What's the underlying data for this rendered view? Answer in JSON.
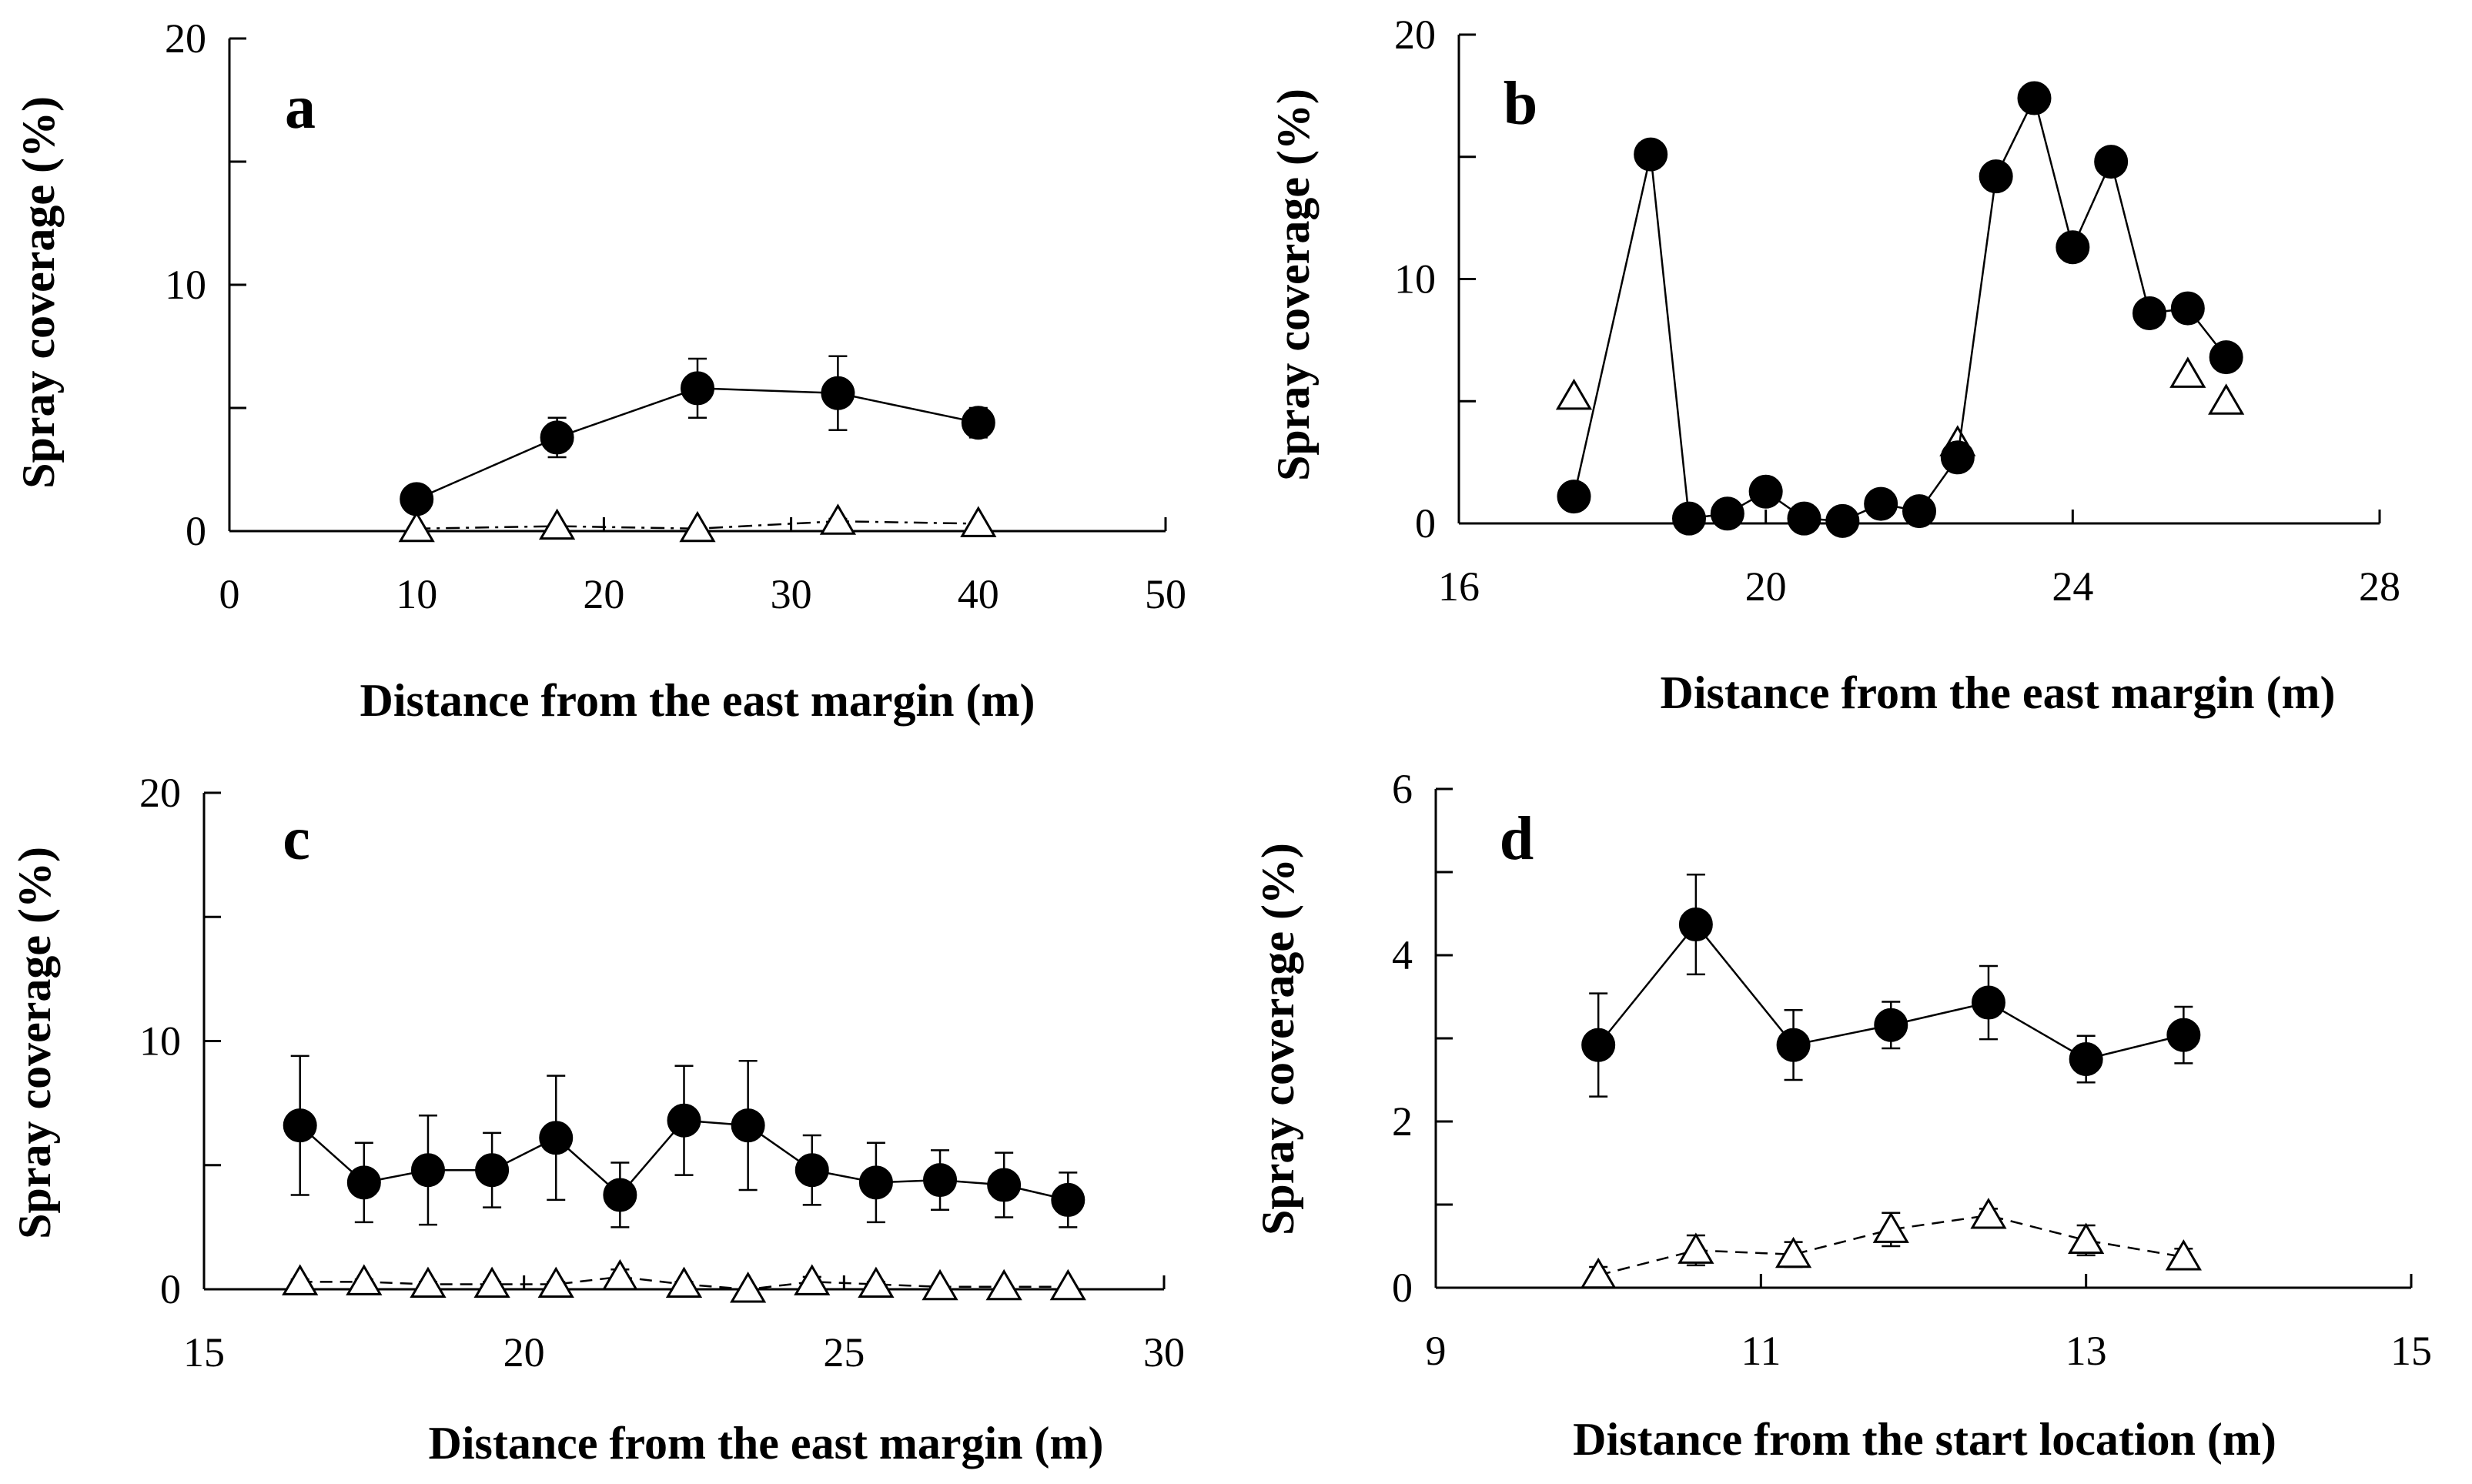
{
  "chart_data": [
    {
      "type": "line",
      "panel_label": "a",
      "xlabel": "Distance from the east margin (m)",
      "ylabel": "Spray coverage (%)",
      "xlim": [
        0,
        50
      ],
      "ylim": [
        0,
        20
      ],
      "xticks": [
        "0",
        "10",
        "20",
        "30",
        "40",
        "50"
      ],
      "yticks": [
        "0",
        "10",
        "20"
      ],
      "series": [
        {
          "name": "filled-circles",
          "marker": "circle",
          "style": "solid",
          "x": [
            10,
            17.5,
            25,
            32.5,
            40
          ],
          "y": [
            1.3,
            3.8,
            5.8,
            5.6,
            4.4
          ],
          "err": [
            0.3,
            0.8,
            1.2,
            1.5,
            0.6
          ]
        },
        {
          "name": "open-triangles",
          "marker": "triangle",
          "style": "dashdot",
          "x": [
            10,
            17.5,
            25,
            32.5,
            40
          ],
          "y": [
            0.1,
            0.2,
            0.1,
            0.4,
            0.3
          ],
          "err": [
            0,
            0,
            0,
            0.1,
            0
          ]
        }
      ]
    },
    {
      "type": "line",
      "panel_label": "b",
      "xlabel": "Distance from the east margin (m)",
      "ylabel": "Spray coverage (%)",
      "xlim": [
        16,
        28
      ],
      "ylim": [
        0,
        20
      ],
      "xticks": [
        "16",
        "20",
        "24",
        "28"
      ],
      "yticks": [
        "0",
        "10",
        "20"
      ],
      "series": [
        {
          "name": "filled-circles",
          "marker": "circle",
          "style": "solid",
          "x": [
            17.5,
            18.5,
            19,
            19.5,
            20,
            20.5,
            21,
            21.5,
            22,
            22.5,
            23,
            23.5,
            24,
            24.5,
            25,
            25.5,
            26
          ],
          "y": [
            1.1,
            15.1,
            0.2,
            0.4,
            1.3,
            0.2,
            0.1,
            0.8,
            0.5,
            2.7,
            14.2,
            17.4,
            11.3,
            14.8,
            8.6,
            8.8,
            6.8
          ],
          "err": []
        },
        {
          "name": "open-triangles",
          "marker": "triangle",
          "style": "none",
          "x": [
            17.5,
            22.5,
            25.5,
            26
          ],
          "y": [
            5.2,
            3.3,
            6.1,
            5.0
          ],
          "err": []
        }
      ]
    },
    {
      "type": "line",
      "panel_label": "c",
      "xlabel": "Distance from the east margin (m)",
      "ylabel": "Spray coverage (%)",
      "xlim": [
        15,
        30
      ],
      "ylim": [
        0,
        20
      ],
      "xticks": [
        "15",
        "20",
        "25",
        "30"
      ],
      "yticks": [
        "0",
        "10",
        "20"
      ],
      "series": [
        {
          "name": "filled-circles",
          "marker": "circle",
          "style": "solid",
          "x": [
            16.5,
            17.5,
            18.5,
            19.5,
            20.5,
            21.5,
            22.5,
            23.5,
            24.5,
            25.5,
            26.5,
            27.5,
            28.5
          ],
          "y": [
            6.6,
            4.3,
            4.8,
            4.8,
            6.1,
            3.8,
            6.8,
            6.6,
            4.8,
            4.3,
            4.4,
            4.2,
            3.6
          ],
          "err": [
            2.8,
            1.6,
            2.2,
            1.5,
            2.5,
            1.3,
            2.2,
            2.6,
            1.4,
            1.6,
            1.2,
            1.3,
            1.1
          ]
        },
        {
          "name": "open-triangles",
          "marker": "triangle",
          "style": "dash",
          "x": [
            16.5,
            17.5,
            18.5,
            19.5,
            20.5,
            21.5,
            22.5,
            23.5,
            24.5,
            25.5,
            26.5,
            27.5,
            28.5
          ],
          "y": [
            0.3,
            0.3,
            0.2,
            0.2,
            0.2,
            0.5,
            0.2,
            0.0,
            0.3,
            0.2,
            0.1,
            0.1,
            0.1
          ],
          "err": [
            0.1,
            0.1,
            0.1,
            0.1,
            0.1,
            0.3,
            0.1,
            0,
            0.2,
            0.1,
            0,
            0,
            0
          ]
        }
      ]
    },
    {
      "type": "line",
      "panel_label": "d",
      "xlabel": "Distance from the start location (m)",
      "ylabel": "Spray coverage (%)",
      "xlim": [
        9,
        15
      ],
      "ylim": [
        0,
        6
      ],
      "xticks": [
        "9",
        "11",
        "13",
        "15"
      ],
      "yticks": [
        "0",
        "2",
        "4",
        "6"
      ],
      "series": [
        {
          "name": "filled-circles",
          "marker": "circle",
          "style": "solid",
          "x": [
            10,
            10.6,
            11.2,
            11.8,
            12.4,
            13,
            13.6
          ],
          "y": [
            2.92,
            4.37,
            2.92,
            3.16,
            3.43,
            2.75,
            3.04
          ],
          "err": [
            0.62,
            0.6,
            0.42,
            0.28,
            0.44,
            0.28,
            0.34
          ]
        },
        {
          "name": "open-triangles",
          "marker": "triangle",
          "style": "dash",
          "x": [
            10,
            10.6,
            11.2,
            11.8,
            12.4,
            13,
            13.6
          ],
          "y": [
            0.15,
            0.45,
            0.4,
            0.7,
            0.87,
            0.57,
            0.37
          ],
          "err": [
            0.1,
            0.18,
            0.15,
            0.2,
            0.08,
            0.18,
            0.1
          ]
        }
      ]
    }
  ]
}
